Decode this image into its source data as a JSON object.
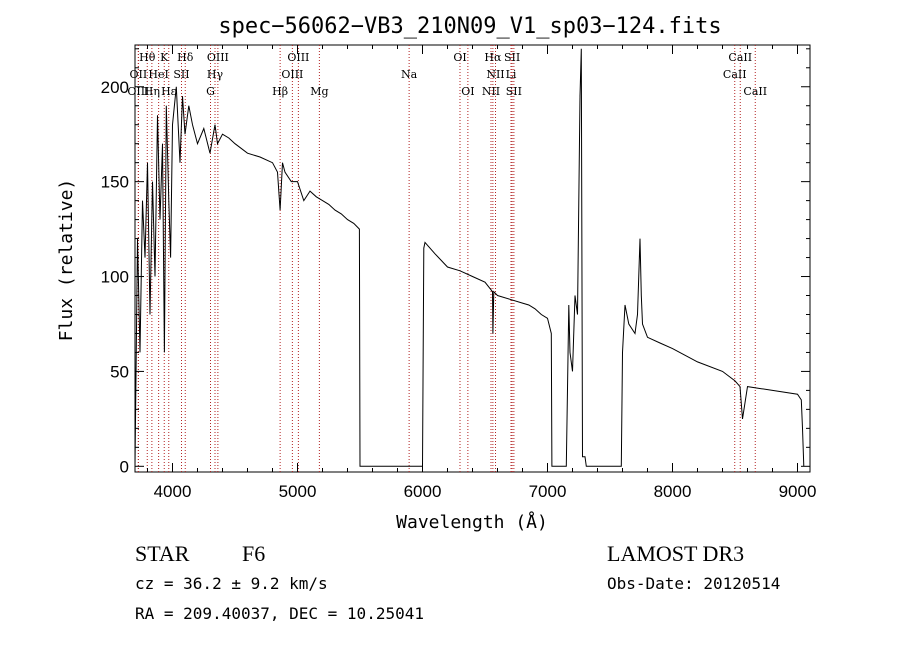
{
  "chart_data": {
    "type": "line",
    "title": "spec−56062−VB3_210N09_V1_sp03−124.fits",
    "xlabel": "Wavelength (Å)",
    "ylabel": "Flux (relative)",
    "xlim": [
      3700,
      9100
    ],
    "ylim": [
      -3,
      222
    ],
    "x_ticks": [
      4000,
      5000,
      6000,
      7000,
      8000,
      9000
    ],
    "y_ticks": [
      0,
      50,
      100,
      150,
      200
    ],
    "series": [
      {
        "name": "spectrum",
        "x": [
          3700,
          3720,
          3740,
          3760,
          3780,
          3800,
          3820,
          3840,
          3860,
          3880,
          3900,
          3920,
          3935,
          3950,
          3970,
          3985,
          4000,
          4030,
          4060,
          4080,
          4100,
          4130,
          4160,
          4200,
          4250,
          4300,
          4340,
          4360,
          4400,
          4450,
          4500,
          4600,
          4700,
          4800,
          4840,
          4861,
          4880,
          4900,
          4950,
          5000,
          5050,
          5100,
          5150,
          5200,
          5250,
          5300,
          5350,
          5400,
          5450,
          5495,
          5500,
          5505,
          5600,
          5800,
          6000,
          6010,
          6020,
          6100,
          6200,
          6300,
          6400,
          6500,
          6560,
          6563,
          6570,
          6600,
          6700,
          6800,
          6850,
          6900,
          6950,
          7000,
          7030,
          7035,
          7040,
          7150,
          7170,
          7180,
          7200,
          7220,
          7240,
          7260,
          7270,
          7280,
          7300,
          7310,
          7500,
          7590,
          7600,
          7620,
          7650,
          7700,
          7720,
          7740,
          7750,
          7760,
          7800,
          7900,
          8000,
          8200,
          8400,
          8500,
          8540,
          8560,
          8600,
          8800,
          9000,
          9030,
          9040,
          9050
        ],
        "y": [
          0,
          120,
          60,
          140,
          110,
          160,
          80,
          150,
          100,
          185,
          130,
          170,
          60,
          190,
          140,
          110,
          180,
          200,
          160,
          195,
          175,
          190,
          180,
          170,
          178,
          165,
          180,
          170,
          175,
          173,
          170,
          165,
          163,
          160,
          155,
          135,
          160,
          155,
          150,
          150,
          140,
          145,
          142,
          140,
          138,
          135,
          133,
          130,
          128,
          125,
          0,
          0,
          0,
          0,
          0,
          115,
          118,
          112,
          105,
          103,
          100,
          97,
          92,
          70,
          92,
          90,
          88,
          86,
          85,
          83,
          80,
          78,
          70,
          0,
          0,
          0,
          85,
          60,
          50,
          90,
          80,
          195,
          220,
          5,
          5,
          0,
          0,
          0,
          60,
          85,
          75,
          70,
          80,
          120,
          90,
          75,
          68,
          65,
          62,
          55,
          50,
          45,
          42,
          25,
          42,
          40,
          38,
          35,
          20,
          0
        ]
      }
    ],
    "line_ids": [
      {
        "label": "Hθ",
        "wavelength": 3798,
        "row": 1
      },
      {
        "label": "K",
        "wavelength": 3934,
        "row": 1
      },
      {
        "label": "Hδ",
        "wavelength": 4102,
        "row": 1
      },
      {
        "label": "OIII",
        "wavelength": 4363,
        "row": 1
      },
      {
        "label": "OIII",
        "wavelength": 5007,
        "row": 1
      },
      {
        "label": "OI",
        "wavelength": 6300,
        "row": 1
      },
      {
        "label": "Hα",
        "wavelength": 6563,
        "row": 1
      },
      {
        "label": "SII",
        "wavelength": 6717,
        "row": 1
      },
      {
        "label": "CaII",
        "wavelength": 8542,
        "row": 1
      },
      {
        "label": "OII",
        "wavelength": 3727,
        "row": 2
      },
      {
        "label": "HeI",
        "wavelength": 3889,
        "row": 2
      },
      {
        "label": "SII",
        "wavelength": 4072,
        "row": 2
      },
      {
        "label": "Hγ",
        "wavelength": 4340,
        "row": 2
      },
      {
        "label": "OIII",
        "wavelength": 4959,
        "row": 2
      },
      {
        "label": "Na",
        "wavelength": 5893,
        "row": 2
      },
      {
        "label": "NII",
        "wavelength": 6584,
        "row": 2
      },
      {
        "label": "Li",
        "wavelength": 6708,
        "row": 2
      },
      {
        "label": "CaII",
        "wavelength": 8498,
        "row": 2
      },
      {
        "label": "OIII",
        "wavelength": 3727,
        "row": 3
      },
      {
        "label": "Hη",
        "wavelength": 3835,
        "row": 3
      },
      {
        "label": "Hε",
        "wavelength": 3970,
        "row": 3
      },
      {
        "label": "G",
        "wavelength": 4304,
        "row": 3
      },
      {
        "label": "Hβ",
        "wavelength": 4861,
        "row": 3
      },
      {
        "label": "Mg",
        "wavelength": 5175,
        "row": 3
      },
      {
        "label": "OI",
        "wavelength": 6363,
        "row": 3
      },
      {
        "label": "NII",
        "wavelength": 6548,
        "row": 3
      },
      {
        "label": "SII",
        "wavelength": 6731,
        "row": 3
      },
      {
        "label": "CaII",
        "wavelength": 8662,
        "row": 3
      }
    ]
  },
  "info": {
    "object_class": "STAR",
    "subclass": "F6",
    "survey": "LAMOST DR3",
    "redshift": "cz = 36.2 ± 9.2 km/s",
    "obs_date": "Obs-Date: 20120514",
    "coords": "RA = 209.40037, DEC =  10.25041"
  },
  "colors": {
    "line_marker": "#b22222",
    "spectrum": "#000000",
    "axis": "#000000"
  }
}
